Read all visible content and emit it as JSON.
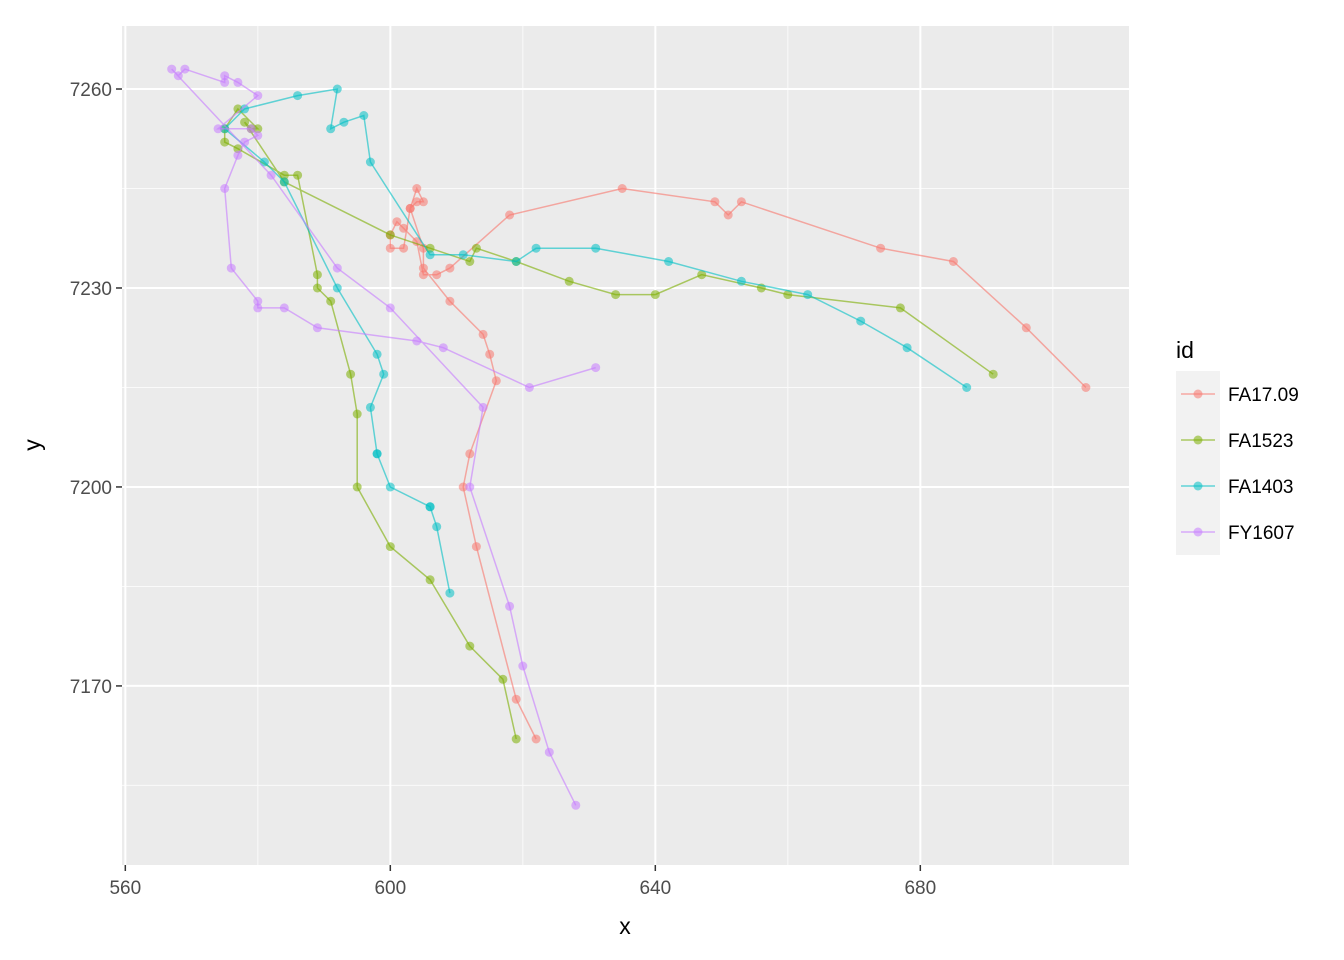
{
  "chart_data": {
    "type": "line",
    "xlabel": "x",
    "ylabel": "y",
    "xlim": [
      559.5,
      711.5
    ],
    "ylim": [
      7143,
      7269.5
    ],
    "x_ticks": [
      560,
      600,
      640,
      680
    ],
    "y_ticks": [
      7170,
      7200,
      7230,
      7260
    ],
    "x_tick_labels": [
      "560",
      "600",
      "640",
      "680"
    ],
    "y_tick_labels": [
      "7170",
      "7200",
      "7230",
      "7260"
    ],
    "grid": true,
    "legend_position": "right",
    "legend_title": "id",
    "panel_background": "#ebebeb",
    "series": [
      {
        "name": "FA17.09",
        "color": "#F8766D",
        "points": [
          [
            705,
            7215
          ],
          [
            696,
            7224
          ],
          [
            685,
            7234
          ],
          [
            674,
            7236
          ],
          [
            653,
            7243
          ],
          [
            651,
            7241
          ],
          [
            649,
            7243
          ],
          [
            635,
            7245
          ],
          [
            618,
            7241
          ],
          [
            609,
            7233
          ],
          [
            607,
            7232
          ],
          [
            605,
            7232
          ],
          [
            604,
            7237
          ],
          [
            602,
            7239
          ],
          [
            601,
            7240
          ],
          [
            600,
            7238
          ],
          [
            600,
            7236
          ],
          [
            602,
            7236
          ],
          [
            603,
            7242
          ],
          [
            604,
            7243
          ],
          [
            605,
            7243
          ],
          [
            604,
            7245
          ],
          [
            603,
            7242
          ],
          [
            605,
            7236
          ],
          [
            605,
            7233
          ],
          [
            609,
            7228
          ],
          [
            614,
            7223
          ],
          [
            615,
            7220
          ],
          [
            616,
            7216
          ],
          [
            612,
            7205
          ],
          [
            611,
            7200
          ],
          [
            613,
            7191
          ],
          [
            619,
            7168
          ],
          [
            622,
            7162
          ]
        ]
      },
      {
        "name": "FA1523",
        "color": "#7CAE00",
        "points": [
          [
            691,
            7217
          ],
          [
            677,
            7227
          ],
          [
            660,
            7229
          ],
          [
            656,
            7230
          ],
          [
            647,
            7232
          ],
          [
            640,
            7229
          ],
          [
            634,
            7229
          ],
          [
            627,
            7231
          ],
          [
            619,
            7234
          ],
          [
            613,
            7236
          ],
          [
            612,
            7234
          ],
          [
            606,
            7236
          ],
          [
            600,
            7238
          ],
          [
            584,
            7246
          ],
          [
            578,
            7255
          ],
          [
            579,
            7254
          ],
          [
            580,
            7254
          ],
          [
            577,
            7257
          ],
          [
            575,
            7254
          ],
          [
            575,
            7252
          ],
          [
            577,
            7251
          ],
          [
            584,
            7247
          ],
          [
            586,
            7247
          ],
          [
            589,
            7232
          ],
          [
            589,
            7230
          ],
          [
            591,
            7228
          ],
          [
            594,
            7217
          ],
          [
            595,
            7211
          ],
          [
            595,
            7200
          ],
          [
            600,
            7191
          ],
          [
            606,
            7186
          ],
          [
            612,
            7176
          ],
          [
            617,
            7171
          ],
          [
            619,
            7162
          ]
        ]
      },
      {
        "name": "FA1403",
        "color": "#00BFC4",
        "points": [
          [
            687,
            7215
          ],
          [
            678,
            7221
          ],
          [
            671,
            7225
          ],
          [
            663,
            7229
          ],
          [
            653,
            7231
          ],
          [
            642,
            7234
          ],
          [
            631,
            7236
          ],
          [
            622,
            7236
          ],
          [
            619,
            7234
          ],
          [
            611,
            7235
          ],
          [
            606,
            7235
          ],
          [
            597,
            7249
          ],
          [
            596,
            7256
          ],
          [
            593,
            7255
          ],
          [
            591,
            7254
          ],
          [
            592,
            7260
          ],
          [
            586,
            7259
          ],
          [
            578,
            7257
          ],
          [
            575,
            7254
          ],
          [
            581,
            7249
          ],
          [
            584,
            7246
          ],
          [
            592,
            7230
          ],
          [
            598,
            7220
          ],
          [
            599,
            7217
          ],
          [
            597,
            7212
          ],
          [
            598,
            7205
          ],
          [
            598,
            7205
          ],
          [
            600,
            7200
          ],
          [
            606,
            7197
          ],
          [
            606,
            7197
          ],
          [
            607,
            7194
          ],
          [
            609,
            7184
          ]
        ]
      },
      {
        "name": "FY1607",
        "color": "#C77CFF",
        "points": [
          [
            631,
            7218
          ],
          [
            621,
            7215
          ],
          [
            608,
            7221
          ],
          [
            604,
            7222
          ],
          [
            589,
            7224
          ],
          [
            584,
            7227
          ],
          [
            580,
            7227
          ],
          [
            580,
            7228
          ],
          [
            576,
            7233
          ],
          [
            575,
            7245
          ],
          [
            577,
            7250
          ],
          [
            578,
            7252
          ],
          [
            580,
            7253
          ],
          [
            579,
            7254
          ],
          [
            574,
            7254
          ],
          [
            580,
            7259
          ],
          [
            577,
            7261
          ],
          [
            575,
            7262
          ],
          [
            575,
            7261
          ],
          [
            569,
            7263
          ],
          [
            568,
            7262
          ],
          [
            567,
            7263
          ],
          [
            582,
            7247
          ],
          [
            592,
            7233
          ],
          [
            600,
            7227
          ],
          [
            614,
            7212
          ],
          [
            612,
            7200
          ],
          [
            618,
            7182
          ],
          [
            620,
            7173
          ],
          [
            624,
            7160
          ],
          [
            628,
            7152
          ]
        ]
      }
    ]
  }
}
